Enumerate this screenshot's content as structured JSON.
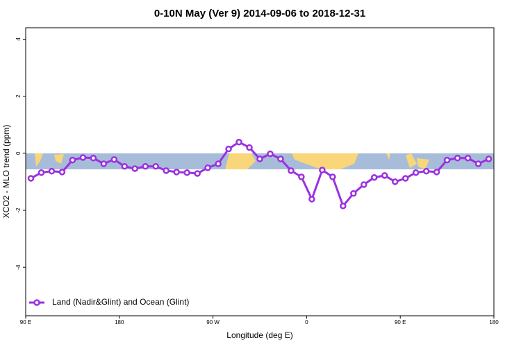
{
  "chart_data": {
    "type": "line",
    "title": "0-10N May (Ver 9)   2014-09-06 to 2018-12-31",
    "x_label": "Longitude (deg E)",
    "y_label": "XCO2 - MLO trend (ppm)",
    "x": [
      95,
      105,
      115,
      125,
      135,
      145,
      155,
      165,
      175,
      185,
      195,
      205,
      215,
      225,
      235,
      245,
      255,
      265,
      275,
      285,
      295,
      305,
      315,
      325,
      335,
      345,
      355,
      365,
      375,
      385,
      395,
      405,
      415,
      425,
      435,
      445,
      455,
      465,
      475,
      485,
      495,
      505,
      515,
      525,
      535
    ],
    "series": [
      {
        "name": "Land (Nadir&Glint) and Ocean (Glint)",
        "color": "#9b30e0",
        "values": [
          -0.88,
          -0.68,
          -0.63,
          -0.66,
          -0.24,
          -0.15,
          -0.17,
          -0.37,
          -0.22,
          -0.46,
          -0.54,
          -0.46,
          -0.46,
          -0.61,
          -0.66,
          -0.68,
          -0.71,
          -0.51,
          -0.37,
          0.15,
          0.39,
          0.2,
          -0.2,
          -0.02,
          -0.2,
          -0.61,
          -0.83,
          -1.61,
          -0.59,
          -0.83,
          -1.85,
          -1.41,
          -1.1,
          -0.85,
          -0.78,
          -1.0,
          -0.88,
          -0.68,
          -0.63,
          -0.66,
          -0.24,
          -0.17,
          -0.17,
          -0.37,
          -0.2
        ]
      }
    ],
    "xlim": [
      90,
      540
    ],
    "xticks": [
      {
        "value": 90,
        "label": "90 E"
      },
      180,
      {
        "value": 270,
        "label": "90 W"
      },
      {
        "value": 360,
        "label": "0"
      },
      {
        "value": 450,
        "label": "90 E"
      },
      {
        "value": 540,
        "label": "180"
      }
    ],
    "ylim": [
      -5.7,
      4.4
    ],
    "yticks": [
      -4,
      -2,
      0,
      2,
      4
    ],
    "legend": "bottom-left"
  }
}
